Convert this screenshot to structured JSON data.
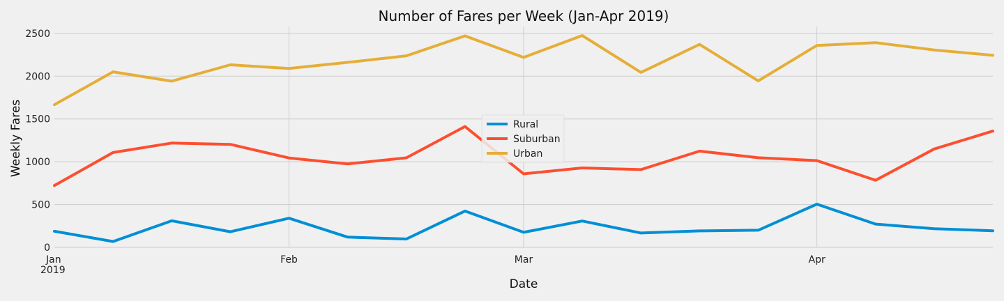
{
  "chart_data": {
    "type": "line",
    "title": "Number of Fares per Week (Jan-Apr 2019)",
    "xlabel": "Date",
    "ylabel": "Weekly Fares",
    "x": [
      "2019-01-06",
      "2019-01-13",
      "2019-01-20",
      "2019-01-27",
      "2019-02-03",
      "2019-02-10",
      "2019-02-17",
      "2019-02-24",
      "2019-03-03",
      "2019-03-10",
      "2019-03-17",
      "2019-03-24",
      "2019-03-31",
      "2019-04-07",
      "2019-04-14",
      "2019-04-21",
      "2019-04-28"
    ],
    "x_tick_labels": [
      {
        "label": "Jan",
        "sublabel": "2019",
        "date": "2019-01-06"
      },
      {
        "label": "Feb",
        "sublabel": "",
        "date": "2019-02-03"
      },
      {
        "label": "Mar",
        "sublabel": "",
        "date": "2019-03-03"
      },
      {
        "label": "Apr",
        "sublabel": "",
        "date": "2019-04-07"
      }
    ],
    "y_ticks": [
      0,
      500,
      1000,
      1500,
      2000,
      2500
    ],
    "ylim": [
      0,
      2580
    ],
    "grid": true,
    "legend_position": "center",
    "series": [
      {
        "name": "Rural",
        "color": "#008fd5",
        "values": [
          188,
          68,
          310,
          182,
          340,
          120,
          98,
          424,
          176,
          308,
          168,
          192,
          200,
          505,
          272,
          218,
          194
        ]
      },
      {
        "name": "Suburban",
        "color": "#fc4f30",
        "values": [
          722,
          1108,
          1218,
          1203,
          1044,
          975,
          1046,
          1411,
          859,
          928,
          908,
          1124,
          1047,
          1013,
          784,
          1149,
          1358
        ]
      },
      {
        "name": "Urban",
        "color": "#e5ae38",
        "values": [
          1666,
          2050,
          1941,
          2132,
          2089,
          2161,
          2237,
          2470,
          2219,
          2474,
          2044,
          2371,
          1944,
          2359,
          2391,
          2306,
          2243
        ]
      }
    ]
  }
}
